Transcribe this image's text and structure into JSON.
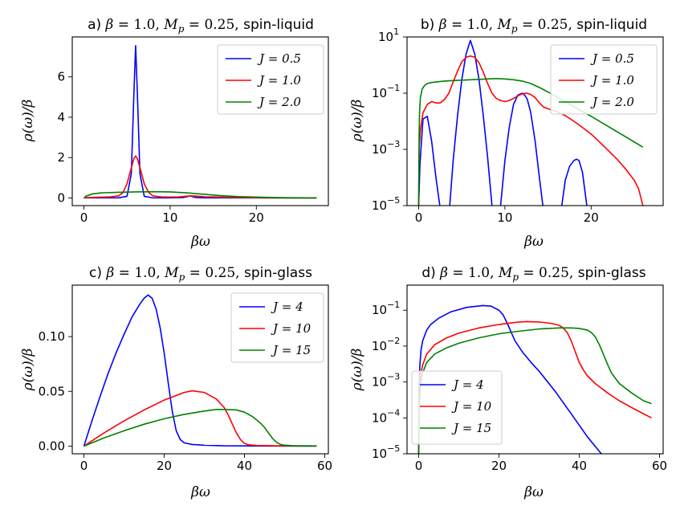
{
  "chart_data": [
    {
      "id": "a",
      "type": "line",
      "title": "a) β = 1.0, M_p = 0.25, spin-liquid",
      "xlabel": "βω",
      "ylabel": "ρ(ω)/β",
      "yscale": "linear",
      "xlim": [
        -1.35,
        28.35
      ],
      "ylim": [
        -0.38,
        7.98
      ],
      "xticks": [
        0,
        10,
        20
      ],
      "xtick_labels": [
        "0",
        "10",
        "20"
      ],
      "yticks": [
        0,
        2,
        4,
        6
      ],
      "ytick_labels": [
        "0",
        "2",
        "4",
        "6"
      ],
      "legend_position": "upper right",
      "series": [
        {
          "name": "J = 0.5",
          "color": "#0000ff",
          "x": [
            0,
            2,
            4,
            5,
            5.5,
            5.8,
            6.0,
            6.2,
            6.5,
            7,
            8,
            10,
            11.5,
            12.3,
            13,
            14,
            16,
            20,
            24,
            27
          ],
          "y": [
            0.003,
            0.003,
            0.004,
            0.08,
            1.2,
            5.2,
            7.55,
            5.2,
            1.2,
            0.08,
            0.003,
            0.003,
            0.02,
            0.1,
            0.02,
            0.003,
            0.003,
            0.003,
            0.002,
            0.002
          ]
        },
        {
          "name": "J = 1.0",
          "color": "#ff0000",
          "x": [
            0,
            0.5,
            2,
            3,
            4,
            4.5,
            5,
            5.5,
            5.8,
            6.0,
            6.2,
            6.5,
            7,
            7.5,
            8,
            9,
            10,
            11,
            12,
            12.5,
            13,
            14,
            15,
            17,
            19,
            21,
            23,
            25,
            27
          ],
          "y": [
            0,
            0.02,
            0.04,
            0.05,
            0.1,
            0.25,
            0.7,
            1.5,
            1.95,
            2.08,
            1.95,
            1.5,
            0.7,
            0.28,
            0.1,
            0.05,
            0.04,
            0.05,
            0.09,
            0.1,
            0.09,
            0.06,
            0.05,
            0.03,
            0.015,
            0.006,
            0.003,
            0.001,
            0.0003
          ]
        },
        {
          "name": "J = 2.0",
          "color": "#008000",
          "x": [
            0,
            0.3,
            1,
            2,
            4,
            6,
            8,
            10,
            12,
            14,
            16,
            18,
            20,
            22,
            24,
            27
          ],
          "y": [
            0,
            0.1,
            0.2,
            0.25,
            0.28,
            0.3,
            0.31,
            0.3,
            0.25,
            0.18,
            0.11,
            0.065,
            0.04,
            0.02,
            0.01,
            0.004
          ]
        }
      ]
    },
    {
      "id": "b",
      "type": "line",
      "title": "b) β = 1.0, M_p = 0.25, spin-liquid",
      "xlabel": "βω",
      "ylabel": "ρ(ω)/β",
      "yscale": "log",
      "xlim": [
        -1.35,
        28.35
      ],
      "ylim": [
        1e-05,
        10
      ],
      "xticks": [
        0,
        10,
        20
      ],
      "xtick_labels": [
        "0",
        "10",
        "20"
      ],
      "yticks": [
        1e-05,
        0.001,
        0.1,
        10
      ],
      "ytick_labels": [
        "10",
        "10",
        "10",
        "10"
      ],
      "ytick_exponents": [
        "−5",
        "−3",
        "−1",
        "1"
      ],
      "legend_position": "upper right",
      "series": [
        {
          "name": "J = 0.5",
          "color": "#0000ff",
          "x": [
            0,
            0.15,
            0.5,
            1.0,
            1.5,
            2.0,
            2.45,
            null,
            3.6,
            4.0,
            4.5,
            5.0,
            5.5,
            6.0,
            6.5,
            7.0,
            7.5,
            8.0,
            8.5,
            null,
            9.5,
            10.0,
            10.5,
            11.0,
            11.5,
            12.0,
            12.3,
            12.6,
            13.0,
            13.5,
            14.0,
            14.4,
            null,
            16.6,
            17.0,
            17.5,
            18.0,
            18.3,
            18.6,
            19.0,
            19.5
          ],
          "y": [
            1e-05,
            0.0003,
            0.012,
            0.015,
            0.002,
            0.0001,
            1e-05,
            null,
            1e-05,
            0.0004,
            0.015,
            0.3,
            2.5,
            7.5,
            2.5,
            0.3,
            0.015,
            0.0005,
            1e-05,
            null,
            1e-05,
            0.0004,
            0.006,
            0.04,
            0.085,
            0.1,
            0.085,
            0.06,
            0.02,
            0.002,
            0.0001,
            1e-05,
            null,
            1e-05,
            8e-05,
            0.00025,
            0.0004,
            0.00045,
            0.0004,
            0.00015,
            1e-05
          ]
        },
        {
          "name": "J = 1.0",
          "color": "#ff0000",
          "x": [
            0,
            0.05,
            0.2,
            0.5,
            1.0,
            1.5,
            2.0,
            2.5,
            3.0,
            3.5,
            4.0,
            4.5,
            5.0,
            5.5,
            6.0,
            6.5,
            7.0,
            7.5,
            8.0,
            8.5,
            9.0,
            9.5,
            10.0,
            10.5,
            11.0,
            11.5,
            12.0,
            12.5,
            13.0,
            13.5,
            14.0,
            14.5,
            15.0,
            16,
            17,
            18,
            19,
            20,
            21,
            22,
            23,
            24,
            25,
            25.5,
            26
          ],
          "y": [
            1e-05,
            0.001,
            0.005,
            0.02,
            0.04,
            0.05,
            0.045,
            0.045,
            0.06,
            0.1,
            0.25,
            0.6,
            1.3,
            1.9,
            2.1,
            1.9,
            1.2,
            0.55,
            0.22,
            0.1,
            0.065,
            0.055,
            0.05,
            0.055,
            0.065,
            0.08,
            0.095,
            0.1,
            0.09,
            0.07,
            0.045,
            0.032,
            0.028,
            0.022,
            0.016,
            0.01,
            0.006,
            0.0035,
            0.0018,
            0.0009,
            0.00045,
            0.0002,
            8e-05,
            4e-05,
            1e-05
          ]
        },
        {
          "name": "J = 2.0",
          "color": "#008000",
          "x": [
            0,
            0.05,
            0.1,
            0.2,
            0.4,
            0.7,
            1.0,
            1.5,
            2.0,
            3,
            4,
            5,
            6,
            7,
            8,
            9,
            10,
            11,
            12,
            13,
            14,
            15,
            16,
            17,
            18,
            20,
            22,
            24,
            26
          ],
          "y": [
            1e-05,
            0.003,
            0.02,
            0.07,
            0.14,
            0.19,
            0.22,
            0.24,
            0.25,
            0.27,
            0.28,
            0.29,
            0.3,
            0.31,
            0.32,
            0.33,
            0.32,
            0.3,
            0.27,
            0.22,
            0.16,
            0.11,
            0.075,
            0.05,
            0.033,
            0.015,
            0.0065,
            0.0028,
            0.0012
          ]
        }
      ]
    },
    {
      "id": "c",
      "type": "line",
      "title": "c) β = 1.0, M_p = 0.25, spin-glass",
      "xlabel": "βω",
      "ylabel": "ρ(ω)/β",
      "yscale": "linear",
      "xlim": [
        -2.9,
        60.9
      ],
      "ylim": [
        -0.007,
        0.147
      ],
      "xticks": [
        0,
        20,
        40,
        60
      ],
      "xtick_labels": [
        "0",
        "20",
        "40",
        "60"
      ],
      "yticks": [
        0,
        0.05,
        0.1
      ],
      "ytick_labels": [
        "0.00",
        "0.05",
        "0.10"
      ],
      "legend_position": "upper right",
      "series": [
        {
          "name": "J = 4",
          "color": "#0000ff",
          "x": [
            0,
            2,
            4,
            6,
            8,
            10,
            12,
            14,
            15,
            16,
            17,
            18,
            19,
            20,
            21,
            22,
            23,
            24,
            25,
            27,
            30,
            35,
            45,
            58
          ],
          "y": [
            0,
            0.023,
            0.045,
            0.066,
            0.085,
            0.102,
            0.118,
            0.13,
            0.135,
            0.138,
            0.135,
            0.125,
            0.108,
            0.085,
            0.058,
            0.032,
            0.014,
            0.006,
            0.003,
            0.0015,
            0.0008,
            0.0003,
            0.0001,
            0
          ]
        },
        {
          "name": "J = 10",
          "color": "#ff0000",
          "x": [
            0,
            5,
            10,
            15,
            20,
            25,
            27,
            30,
            33,
            35,
            36,
            37,
            38,
            39,
            40,
            41,
            43,
            48,
            58
          ],
          "y": [
            0,
            0.012,
            0.023,
            0.033,
            0.042,
            0.049,
            0.0505,
            0.049,
            0.043,
            0.035,
            0.028,
            0.02,
            0.012,
            0.006,
            0.0025,
            0.0012,
            0.0006,
            0.0003,
            0.0001
          ]
        },
        {
          "name": "J = 15",
          "color": "#008000",
          "x": [
            0,
            5,
            10,
            15,
            20,
            25,
            30,
            33,
            35,
            38,
            40,
            42,
            44,
            45,
            46,
            47,
            48,
            49,
            50,
            52,
            58
          ],
          "y": [
            0,
            0.0075,
            0.014,
            0.02,
            0.025,
            0.029,
            0.032,
            0.0335,
            0.0335,
            0.033,
            0.031,
            0.027,
            0.021,
            0.017,
            0.012,
            0.007,
            0.0035,
            0.0015,
            0.0008,
            0.0004,
            0.0002
          ]
        }
      ]
    },
    {
      "id": "d",
      "type": "line",
      "title": "d) β = 1.0, M_p = 0.25, spin-glass",
      "xlabel": "βω",
      "ylabel": "ρ(ω)/β",
      "yscale": "log",
      "xlim": [
        -2.9,
        60.9
      ],
      "ylim": [
        1e-05,
        0.5
      ],
      "xticks": [
        0,
        20,
        40,
        60
      ],
      "xtick_labels": [
        "0",
        "20",
        "40",
        "60"
      ],
      "yticks": [
        1e-05,
        0.0001,
        0.001,
        0.01,
        0.1
      ],
      "ytick_labels": [
        "10",
        "10",
        "10",
        "10",
        "10"
      ],
      "ytick_exponents": [
        "−5",
        "−4",
        "−3",
        "−2",
        "−1"
      ],
      "legend_position": "lower left",
      "series": [
        {
          "name": "J = 4",
          "color": "#0000ff",
          "x": [
            0,
            0.1,
            0.3,
            0.6,
            1,
            2,
            3,
            5,
            8,
            12,
            16,
            18,
            20,
            21,
            22,
            23,
            24,
            26,
            28,
            30,
            34,
            38,
            42,
            45.5
          ],
          "y": [
            1e-05,
            0.0008,
            0.003,
            0.008,
            0.014,
            0.028,
            0.04,
            0.06,
            0.09,
            0.12,
            0.135,
            0.13,
            0.1,
            0.075,
            0.045,
            0.025,
            0.014,
            0.0065,
            0.0035,
            0.002,
            0.00055,
            0.00013,
            3e-05,
            1e-05
          ]
        },
        {
          "name": "J = 10",
          "color": "#ff0000",
          "x": [
            0,
            0.1,
            0.3,
            0.6,
            1,
            2,
            4,
            7,
            10,
            15,
            20,
            25,
            27,
            30,
            33,
            35,
            36,
            37,
            38,
            39,
            40,
            41,
            42,
            44,
            47,
            50,
            54,
            58
          ],
          "y": [
            1e-05,
            0.0002,
            0.0008,
            0.0018,
            0.003,
            0.006,
            0.011,
            0.017,
            0.023,
            0.032,
            0.04,
            0.047,
            0.048,
            0.047,
            0.043,
            0.038,
            0.032,
            0.024,
            0.014,
            0.007,
            0.0035,
            0.0022,
            0.0015,
            0.0009,
            0.0005,
            0.0003,
            0.00017,
            0.0001
          ]
        },
        {
          "name": "J = 15",
          "color": "#008000",
          "x": [
            0,
            0.1,
            0.3,
            0.6,
            1,
            2,
            4,
            7,
            10,
            15,
            20,
            25,
            30,
            35,
            38,
            40,
            42,
            43,
            44,
            45,
            46,
            47,
            48,
            50,
            53,
            56,
            58
          ],
          "y": [
            1e-05,
            0.0001,
            0.0004,
            0.001,
            0.0018,
            0.0035,
            0.006,
            0.009,
            0.012,
            0.017,
            0.022,
            0.026,
            0.03,
            0.032,
            0.032,
            0.031,
            0.028,
            0.024,
            0.018,
            0.011,
            0.006,
            0.0032,
            0.0018,
            0.0009,
            0.0005,
            0.0003,
            0.00025
          ]
        }
      ]
    }
  ]
}
